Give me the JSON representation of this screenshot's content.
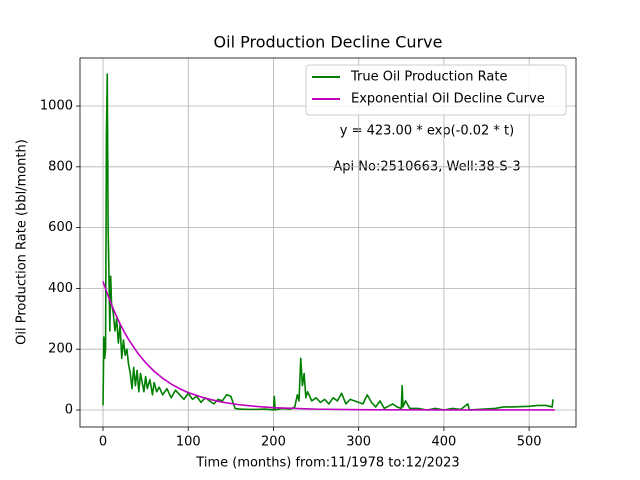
{
  "chart_data": {
    "type": "line",
    "title": "Oil Production Decline Curve",
    "xlabel": "Time (months) from:11/1978 to:12/2023",
    "ylabel": "Oil Production Rate (bbl/month)",
    "annotations": [
      "y = 423.00 * exp(-0.02 * t)",
      "Api No:2510663, Well:38-S-3"
    ],
    "xlim": [
      -27,
      555
    ],
    "ylim": [
      -56,
      1158
    ],
    "xticks": [
      0,
      100,
      200,
      300,
      400,
      500
    ],
    "yticks": [
      0,
      200,
      400,
      600,
      800,
      1000
    ],
    "grid": true,
    "legend": "upper right",
    "series": [
      {
        "name": "True Oil Production Rate",
        "color": "#008000",
        "x": [
          0,
          1,
          2,
          3,
          4,
          5,
          6,
          7,
          8,
          9,
          10,
          12,
          14,
          16,
          18,
          20,
          22,
          24,
          26,
          28,
          30,
          32,
          34,
          36,
          38,
          40,
          42,
          44,
          46,
          48,
          50,
          52,
          55,
          58,
          60,
          63,
          66,
          70,
          75,
          80,
          85,
          90,
          95,
          100,
          105,
          110,
          115,
          120,
          125,
          130,
          135,
          140,
          145,
          150,
          155,
          160,
          170,
          180,
          190,
          200,
          201,
          202,
          210,
          220,
          225,
          228,
          230,
          232,
          234,
          236,
          238,
          240,
          245,
          250,
          255,
          260,
          265,
          270,
          275,
          280,
          285,
          290,
          300,
          305,
          310,
          315,
          320,
          325,
          330,
          340,
          345,
          350,
          351,
          352,
          355,
          360,
          370,
          380,
          390,
          400,
          410,
          420,
          428,
          430,
          440,
          460,
          470,
          480,
          500,
          510,
          520,
          527,
          528
        ],
        "values": [
          15,
          240,
          170,
          200,
          900,
          1105,
          600,
          440,
          260,
          440,
          350,
          320,
          260,
          300,
          220,
          280,
          170,
          230,
          180,
          200,
          150,
          120,
          70,
          140,
          80,
          130,
          60,
          120,
          90,
          60,
          110,
          70,
          100,
          50,
          90,
          60,
          75,
          50,
          70,
          40,
          65,
          50,
          35,
          55,
          35,
          45,
          25,
          40,
          30,
          20,
          35,
          30,
          50,
          45,
          5,
          3,
          2,
          2,
          3,
          0,
          45,
          0,
          5,
          3,
          10,
          50,
          30,
          170,
          80,
          120,
          40,
          60,
          30,
          40,
          25,
          35,
          20,
          40,
          30,
          55,
          20,
          35,
          25,
          20,
          50,
          25,
          10,
          30,
          5,
          20,
          10,
          5,
          80,
          10,
          30,
          5,
          5,
          0,
          5,
          0,
          5,
          2,
          20,
          0,
          2,
          5,
          10,
          10,
          12,
          15,
          15,
          10,
          35
        ]
      },
      {
        "name": "Exponential Oil Decline Curve",
        "color": "#bf00bf",
        "x": [
          0,
          5,
          10,
          15,
          20,
          25,
          30,
          40,
          50,
          60,
          70,
          80,
          90,
          100,
          120,
          140,
          160,
          180,
          200,
          250,
          300,
          350,
          400,
          450,
          530
        ],
        "values": [
          423,
          382.7,
          346.3,
          313.4,
          283.5,
          256.6,
          232.1,
          190.1,
          155.6,
          127.4,
          104.3,
          85.4,
          69.9,
          57.2,
          38.4,
          25.7,
          17.2,
          11.6,
          7.7,
          2.8,
          1.0,
          0.4,
          0.1,
          0.1,
          0
        ]
      }
    ]
  }
}
